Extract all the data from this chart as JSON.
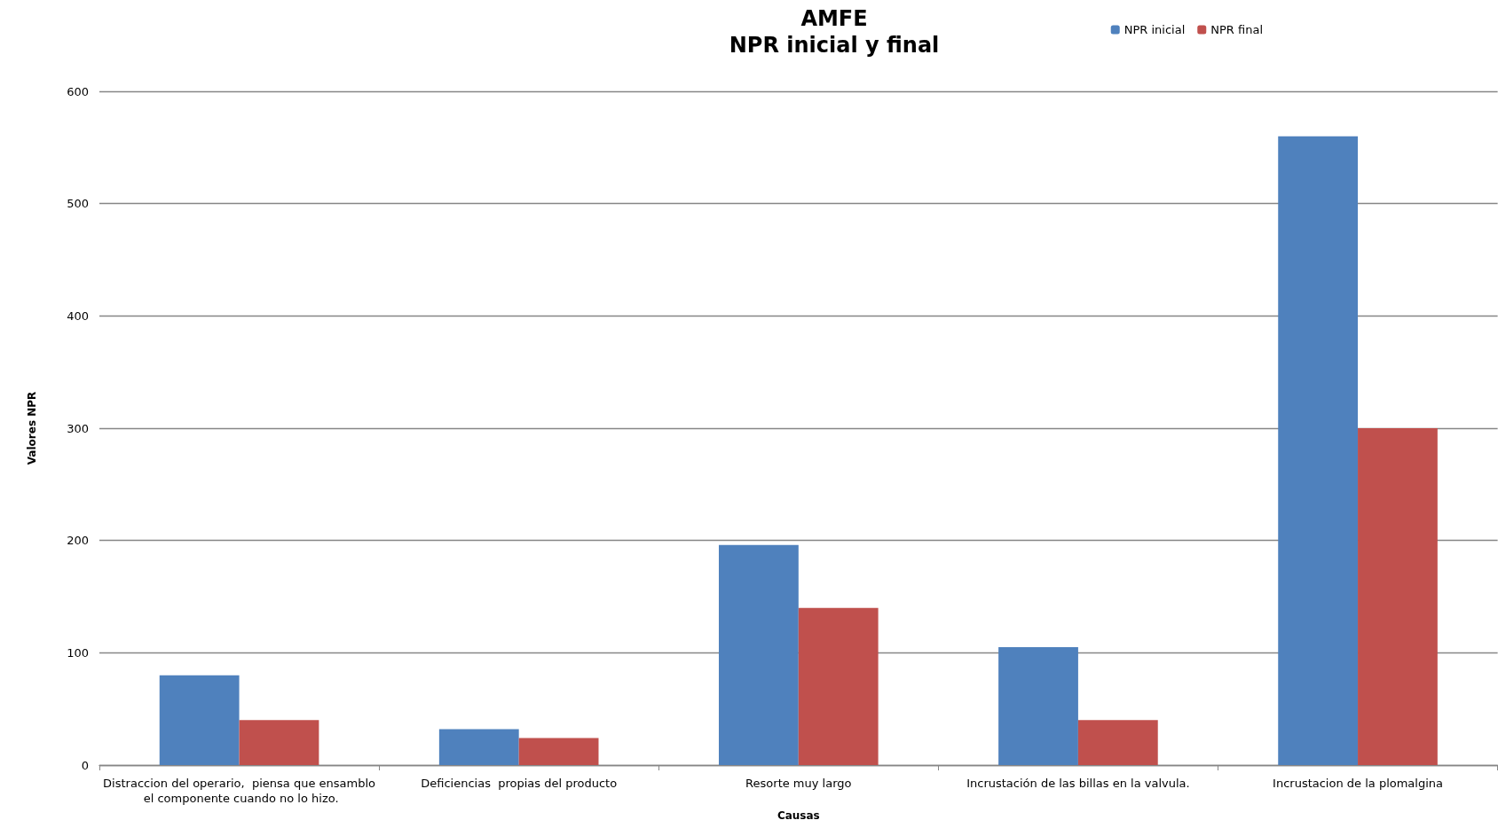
{
  "chart_data": {
    "type": "bar",
    "title": "AMFE",
    "subtitle": "NPR inicial y final",
    "xlabel": "Causas",
    "ylabel": "Valores NPR",
    "categories": [
      "Distraccion del operario,  piensa que ensamblo el componente cuando no lo hizo.",
      "Deficiencias  propias del producto",
      "Resorte muy largo",
      "Incrustación de las billas en la valvula.",
      "Incrustacion de la plomalgina"
    ],
    "series": [
      {
        "name": "NPR inicial",
        "color": "#4f81bd",
        "values": [
          80,
          32,
          196,
          105,
          560
        ]
      },
      {
        "name": "NPR final",
        "color": "#c0504d",
        "values": [
          40,
          24,
          140,
          40,
          300
        ]
      }
    ],
    "ylim": [
      0,
      600
    ],
    "yticks": [
      0,
      100,
      200,
      300,
      400,
      500,
      600
    ],
    "grid": "y",
    "legend": "top right"
  }
}
